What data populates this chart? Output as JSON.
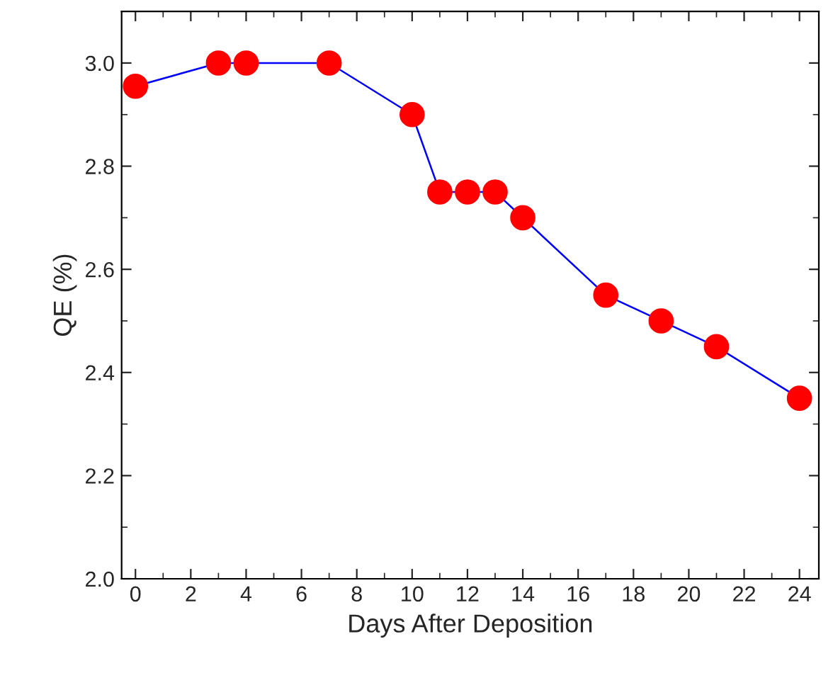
{
  "chart_data": {
    "type": "line",
    "xlabel": "Days After Deposition",
    "ylabel": "QE (%)",
    "x": [
      0,
      3,
      4,
      7,
      10,
      11,
      12,
      13,
      14,
      17,
      19,
      21,
      24
    ],
    "series": [
      {
        "color": "#0000ff",
        "colors": [
          "#ff0000",
          "#ff0000",
          "#ff0000",
          "#ff0000",
          "#ff0000",
          "#ff0000",
          "#ff0000",
          "#ff0000",
          "#ff0000",
          "#ff0000",
          "#ff0000",
          "#ff0000",
          "#ff0000"
        ],
        "values": [
          2.955,
          3.0,
          3.0,
          3.0,
          2.9,
          2.75,
          2.75,
          2.75,
          2.7,
          2.55,
          2.5,
          2.45,
          2.35
        ]
      }
    ],
    "xlim": [
      -0.5,
      24.7
    ],
    "ylim": [
      2.0,
      3.1
    ],
    "xticks": [
      0,
      2,
      4,
      6,
      8,
      10,
      12,
      14,
      16,
      18,
      20,
      22,
      24
    ],
    "yticks": [
      {
        "value": 2.0,
        "label": "2.0"
      },
      {
        "value": 2.2,
        "label": "2.2"
      },
      {
        "value": 2.4,
        "label": "2.4"
      },
      {
        "value": 2.6,
        "label": "2.6"
      },
      {
        "value": 2.8,
        "label": "2.8"
      },
      {
        "value": 3.0,
        "label": "3.0"
      }
    ],
    "marker": "circle",
    "line_style": "solid",
    "grid": false,
    "legend": false
  }
}
